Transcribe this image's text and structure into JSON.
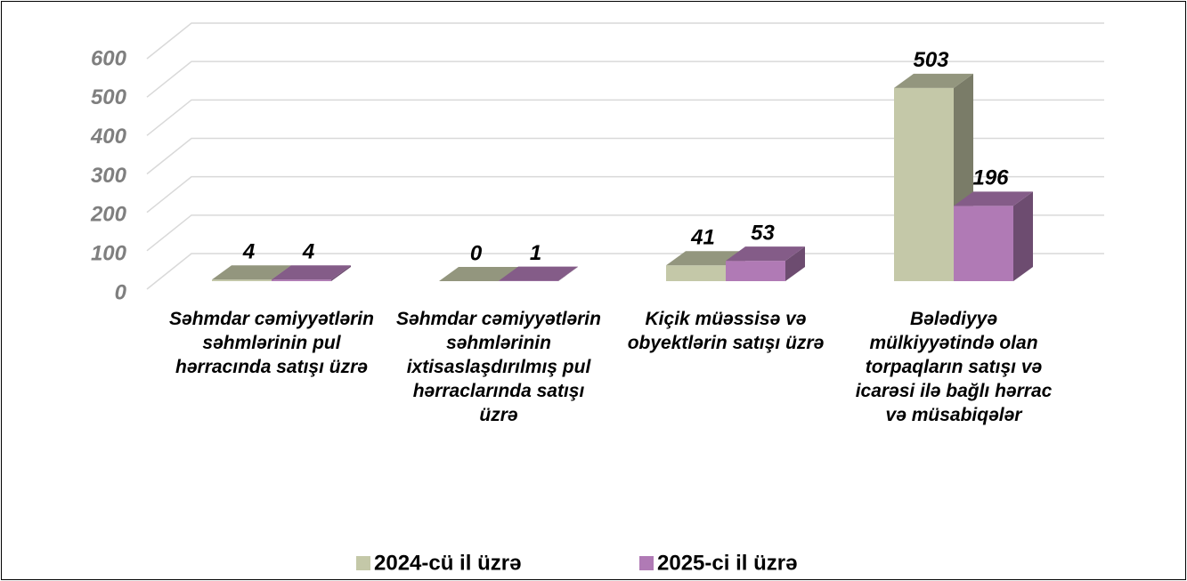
{
  "chart_data": {
    "type": "bar3d",
    "categories": [
      "Səhmdar cəmiyyətlərin səhmlərinin pul hərracında satışı üzrə",
      "Səhmdar cəmiyyətlərin səhmlərinin ixtisaslaşdırılmış pul hərraclarında satışı üzrə",
      "Kiçik müəssisə və obyektlərin satışı üzrə",
      "Bələdiyyə mülkiyyətində olan torpaqların satışı və icarəsi ilə bağlı hərrac və müsabiqələr"
    ],
    "series": [
      {
        "name": "2024-cü il üzrə",
        "color": "#c4c8a8",
        "values": [
          4,
          0,
          41,
          503
        ]
      },
      {
        "name": "2025-ci il üzrə",
        "color": "#b07ab5",
        "values": [
          4,
          1,
          53,
          196
        ]
      }
    ],
    "ylim": [
      0,
      600
    ],
    "yticks": [
      0,
      100,
      200,
      300,
      400,
      500,
      600
    ],
    "grid": true,
    "legend": "bottom"
  }
}
